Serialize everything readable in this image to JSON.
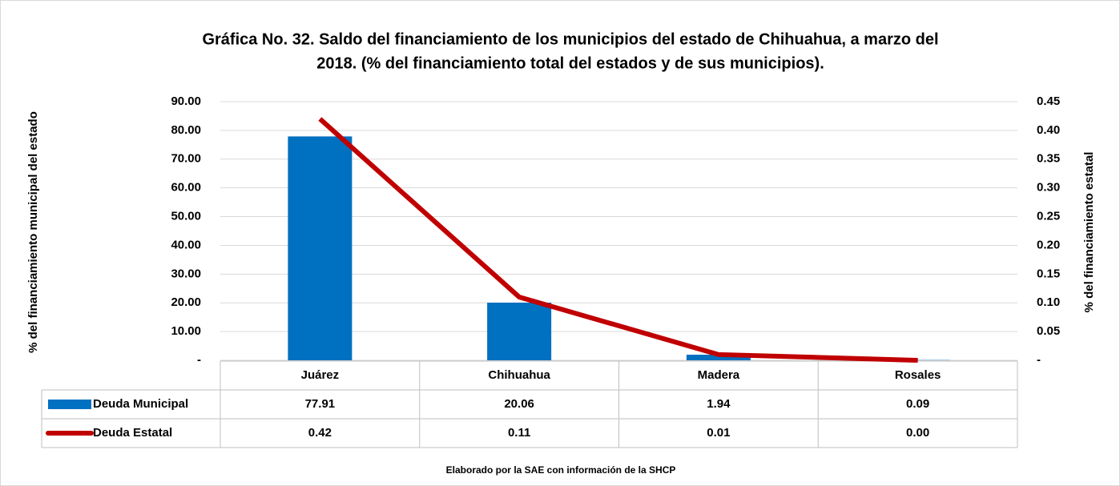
{
  "chart_data": {
    "type": "bar-line",
    "title": [
      "Gráfica No. 32. Saldo del financiamiento de los municipios del estado de Chihuahua, a marzo  del",
      "2018. (% del financiamiento total del estados y de sus municipios)."
    ],
    "ylabel": "% del financiamiento municipal del estado",
    "y2label": "% del financiamiento estatal",
    "footnote": "Elaborado por la SAE con información de  la SHCP",
    "categories": [
      "Juárez",
      "Chihuahua",
      "Madera",
      "Rosales"
    ],
    "series": [
      {
        "name": "Deuda Municipal",
        "type": "bar",
        "color": "#0070c0",
        "values": [
          77.91,
          20.06,
          1.94,
          0.09
        ],
        "value_labels": [
          "77.91",
          "20.06",
          "1.94",
          "0.09"
        ]
      },
      {
        "name": "Deuda Estatal",
        "type": "line",
        "axis": "y2",
        "color": "#c00000",
        "values": [
          0.42,
          0.11,
          0.01,
          0.0
        ],
        "value_labels": [
          "0.42",
          "0.11",
          "0.01",
          "0.00"
        ]
      }
    ],
    "ylim": [
      0,
      90
    ],
    "yticks": [
      {
        "value": 0,
        "label": "-"
      },
      {
        "value": 10,
        "label": "10.00"
      },
      {
        "value": 20,
        "label": "20.00"
      },
      {
        "value": 30,
        "label": "30.00"
      },
      {
        "value": 40,
        "label": "40.00"
      },
      {
        "value": 50,
        "label": "50.00"
      },
      {
        "value": 60,
        "label": "60.00"
      },
      {
        "value": 70,
        "label": "70.00"
      },
      {
        "value": 80,
        "label": "80.00"
      },
      {
        "value": 90,
        "label": "90.00"
      }
    ],
    "y2lim": [
      0,
      0.45
    ],
    "y2ticks": [
      {
        "value": 0,
        "label": "-"
      },
      {
        "value": 0.05,
        "label": "0.05"
      },
      {
        "value": 0.1,
        "label": "0.10"
      },
      {
        "value": 0.15,
        "label": "0.15"
      },
      {
        "value": 0.2,
        "label": "0.20"
      },
      {
        "value": 0.25,
        "label": "0.25"
      },
      {
        "value": 0.3,
        "label": "0.30"
      },
      {
        "value": 0.35,
        "label": "0.35"
      },
      {
        "value": 0.4,
        "label": "0.40"
      },
      {
        "value": 0.45,
        "label": "0.45"
      }
    ],
    "grid": true
  }
}
